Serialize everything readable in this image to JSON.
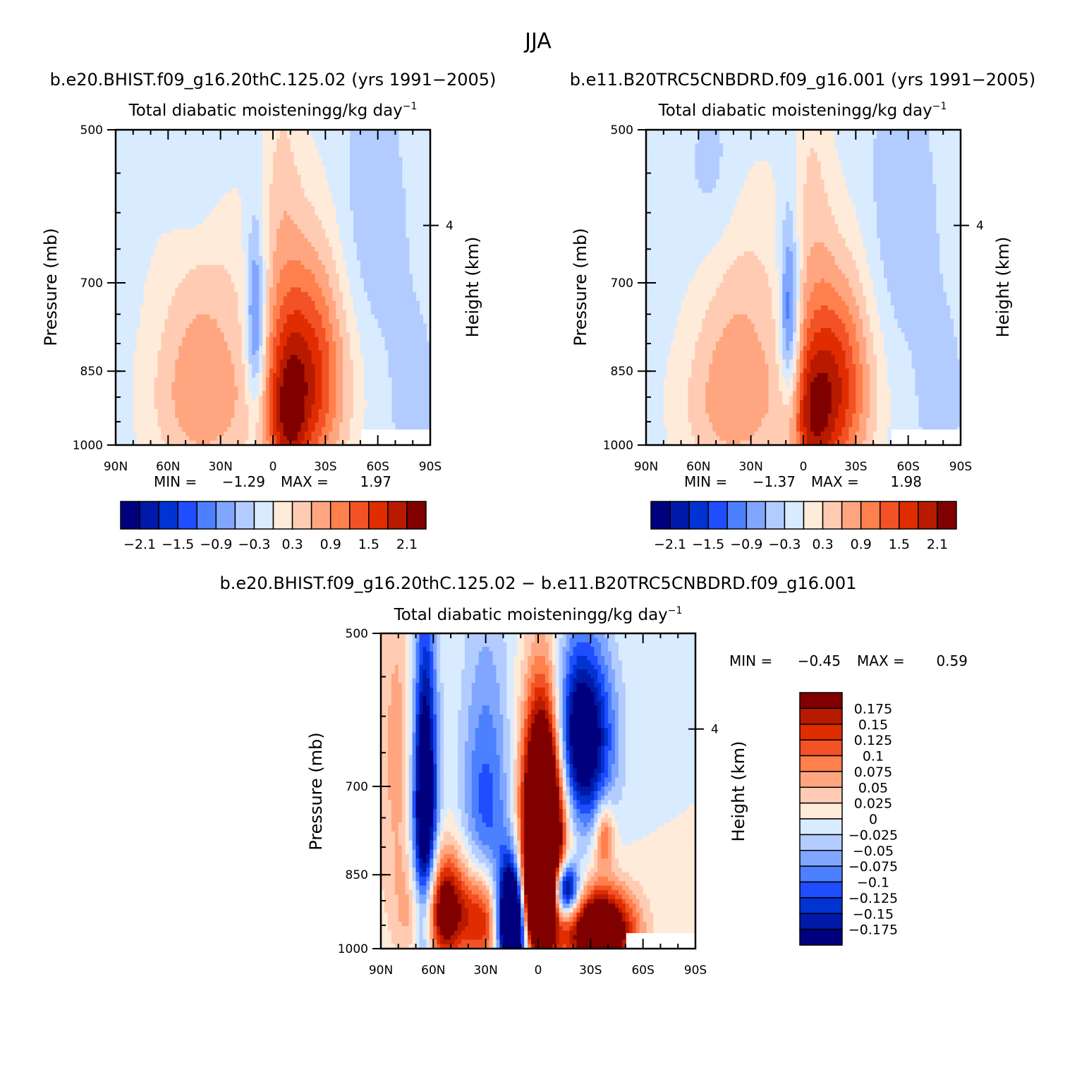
{
  "figure": {
    "title": "JJA"
  },
  "colors": {
    "full_scale": [
      "#00007f",
      "#0019a8",
      "#0033d1",
      "#1f4dff",
      "#4d80ff",
      "#80a6ff",
      "#b3ccff",
      "#d9ebff",
      "#ffebd9",
      "#ffccb3",
      "#ffa680",
      "#ff804d",
      "#f25226",
      "#e02d00",
      "#b81a00",
      "#800000"
    ],
    "diff_scale": [
      "#00007f",
      "#0019a8",
      "#0033d1",
      "#1f4dff",
      "#4d80ff",
      "#80a6ff",
      "#b3ccff",
      "#d9ebff",
      "#ffebd9",
      "#ffccb3",
      "#ffa680",
      "#ff804d",
      "#f25226",
      "#e02d00",
      "#b81a00",
      "#800000"
    ]
  },
  "chart_data": [
    {
      "type": "heatmap",
      "title": "b.e20.BHIST.f09_g16.20thC.125.02 (yrs 1991−2005)",
      "subtitle": "Total diabatic moistening",
      "units_main": "g/kg day",
      "units_sup": "−1",
      "xlabel": "",
      "ylabel": "Pressure (mb)",
      "ylabel_right": "Height (km)",
      "x_ticks": [
        "90N",
        "60N",
        "30N",
        "0",
        "30S",
        "60S",
        "90S"
      ],
      "x_range": [
        90,
        -90
      ],
      "y_ticks": [
        "500",
        "700",
        "850",
        "1000"
      ],
      "y_range": [
        500,
        1000
      ],
      "right_ticks": [
        "4"
      ],
      "stats": {
        "min_label": "MIN =",
        "min": "−1.29",
        "max_label": "MAX =",
        "max": "1.97"
      },
      "levels": [
        "−2.1",
        "−1.5",
        "−0.9",
        "−0.3",
        "0.3",
        "0.9",
        "1.5",
        "2.1"
      ],
      "blobs": [
        {
          "lat": -20,
          "p": 860,
          "amp": 1.9,
          "sx": 16,
          "sp": 160
        },
        {
          "lat": -8,
          "p": 960,
          "amp": 1.2,
          "sx": 8,
          "sp": 120
        },
        {
          "lat": 40,
          "p": 920,
          "amp": 0.9,
          "sx": 22,
          "sp": 120
        },
        {
          "lat": 40,
          "p": 700,
          "amp": 0.5,
          "sx": 20,
          "sp": 140
        },
        {
          "lat": -5,
          "p": 560,
          "amp": 0.4,
          "sx": 8,
          "sp": 150
        },
        {
          "lat": 10,
          "p": 770,
          "amp": -1.3,
          "sx": 4,
          "sp": 110
        },
        {
          "lat": 45,
          "p": 560,
          "amp": -0.35,
          "sx": 12,
          "sp": 80
        },
        {
          "lat": -55,
          "p": 620,
          "amp": -0.35,
          "sx": 14,
          "sp": 130
        },
        {
          "lat": -80,
          "p": 900,
          "amp": -0.25,
          "sx": 10,
          "sp": 120
        }
      ],
      "base": -0.18
    },
    {
      "type": "heatmap",
      "title": "b.e11.B20TRC5CNBDRD.f09_g16.001 (yrs 1991−2005)",
      "subtitle": "Total diabatic moistening",
      "units_main": "g/kg day",
      "units_sup": "−1",
      "xlabel": "",
      "ylabel": "Pressure (mb)",
      "ylabel_right": "Height (km)",
      "x_ticks": [
        "90N",
        "60N",
        "30N",
        "0",
        "30S",
        "60S",
        "90S"
      ],
      "x_range": [
        90,
        -90
      ],
      "y_ticks": [
        "500",
        "700",
        "850",
        "1000"
      ],
      "y_range": [
        500,
        1000
      ],
      "right_ticks": [
        "4"
      ],
      "stats": {
        "min_label": "MIN =",
        "min": "−1.37",
        "max_label": "MAX =",
        "max": "1.98"
      },
      "levels": [
        "−2.1",
        "−1.5",
        "−0.9",
        "−0.3",
        "0.3",
        "0.9",
        "1.5",
        "2.1"
      ],
      "blobs": [
        {
          "lat": -18,
          "p": 880,
          "amp": 1.9,
          "sx": 15,
          "sp": 150
        },
        {
          "lat": -5,
          "p": 960,
          "amp": 1.1,
          "sx": 8,
          "sp": 110
        },
        {
          "lat": 40,
          "p": 920,
          "amp": 0.9,
          "sx": 22,
          "sp": 120
        },
        {
          "lat": 35,
          "p": 700,
          "amp": 0.5,
          "sx": 18,
          "sp": 140
        },
        {
          "lat": -5,
          "p": 560,
          "amp": 0.4,
          "sx": 8,
          "sp": 150
        },
        {
          "lat": 8,
          "p": 760,
          "amp": -1.4,
          "sx": 4,
          "sp": 110
        },
        {
          "lat": 50,
          "p": 560,
          "amp": -0.35,
          "sx": 12,
          "sp": 80
        },
        {
          "lat": -55,
          "p": 620,
          "amp": -0.35,
          "sx": 14,
          "sp": 130
        },
        {
          "lat": -78,
          "p": 900,
          "amp": -0.25,
          "sx": 10,
          "sp": 120
        }
      ],
      "base": -0.18
    },
    {
      "type": "heatmap",
      "title": "b.e20.BHIST.f09_g16.20thC.125.02 − b.e11.B20TRC5CNBDRD.f09_g16.001",
      "subtitle": "Total diabatic moistening",
      "units_main": "g/kg day",
      "units_sup": "−1",
      "xlabel": "",
      "ylabel": "Pressure (mb)",
      "ylabel_right": "Height (km)",
      "x_ticks": [
        "90N",
        "60N",
        "30N",
        "0",
        "30S",
        "60S",
        "90S"
      ],
      "x_range": [
        90,
        -90
      ],
      "y_ticks": [
        "500",
        "700",
        "850",
        "1000"
      ],
      "y_range": [
        500,
        1000
      ],
      "right_ticks": [
        "4"
      ],
      "stats": {
        "min_label": "MIN =",
        "min": "−0.45",
        "max_label": "MAX =",
        "max": "0.59"
      },
      "levels": [
        "0.175",
        "0.15",
        "0.125",
        "0.1",
        "0.075",
        "0.05",
        "0.025",
        "0",
        "−0.025",
        "−0.05",
        "−0.075",
        "−0.1",
        "−0.125",
        "−0.15",
        "−0.175"
      ],
      "blobs": [
        {
          "lat": -3,
          "p": 760,
          "amp": 0.5,
          "sx": 8,
          "sp": 130
        },
        {
          "lat": 0,
          "p": 900,
          "amp": 0.35,
          "sx": 6,
          "sp": 70
        },
        {
          "lat": 15,
          "p": 940,
          "amp": -0.4,
          "sx": 6,
          "sp": 80
        },
        {
          "lat": 65,
          "p": 760,
          "amp": -0.3,
          "sx": 5,
          "sp": 200
        },
        {
          "lat": -25,
          "p": 630,
          "amp": -0.25,
          "sx": 12,
          "sp": 90
        },
        {
          "lat": -15,
          "p": 880,
          "amp": -0.3,
          "sx": 6,
          "sp": 40
        },
        {
          "lat": -35,
          "p": 960,
          "amp": 0.3,
          "sx": 14,
          "sp": 60
        },
        {
          "lat": 55,
          "p": 920,
          "amp": 0.25,
          "sx": 12,
          "sp": 80
        },
        {
          "lat": 30,
          "p": 940,
          "amp": 0.2,
          "sx": 8,
          "sp": 80
        },
        {
          "lat": -38,
          "p": 780,
          "amp": 0.12,
          "sx": 4,
          "sp": 40
        },
        {
          "lat": 80,
          "p": 650,
          "amp": 0.06,
          "sx": 10,
          "sp": 200
        },
        {
          "lat": 30,
          "p": 780,
          "amp": -0.12,
          "sx": 10,
          "sp": 200
        }
      ],
      "base": 0.0
    }
  ]
}
